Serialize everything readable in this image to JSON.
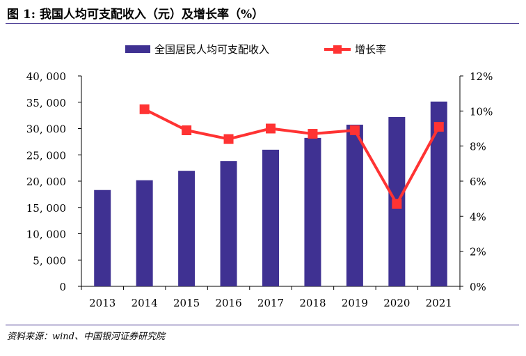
{
  "header": {
    "title": "图 1: 我国人均可支配收入（元）及增长率（%）"
  },
  "footer": {
    "source": "资料来源：wind、中国银河证券研究院"
  },
  "colors": {
    "bar": "#3f3192",
    "line": "#ff3333",
    "rule": "#3a2a8a"
  },
  "chart_data": {
    "type": "bar",
    "categories": [
      "2013",
      "2014",
      "2015",
      "2016",
      "2017",
      "2018",
      "2019",
      "2020",
      "2021"
    ],
    "series": [
      {
        "name": "全国居民人均可支配收入",
        "kind": "bar",
        "axis": "left",
        "values": [
          18311,
          20167,
          21966,
          23821,
          25974,
          28228,
          30733,
          32189,
          35128
        ]
      },
      {
        "name": "增长率",
        "kind": "line",
        "axis": "right",
        "values": [
          null,
          10.1,
          8.9,
          8.4,
          9.0,
          8.7,
          8.9,
          4.7,
          9.1
        ]
      }
    ],
    "y_left": {
      "ylim": [
        0,
        40000
      ],
      "ticks": [
        0,
        5000,
        10000,
        15000,
        20000,
        25000,
        30000,
        35000,
        40000
      ],
      "tick_labels": [
        "0",
        "5, 000",
        "10, 000",
        "15, 000",
        "20, 000",
        "25, 000",
        "30, 000",
        "35, 000",
        "40, 000"
      ]
    },
    "y_right": {
      "ylim": [
        0,
        12
      ],
      "ticks": [
        0,
        2,
        4,
        6,
        8,
        10,
        12
      ],
      "tick_labels": [
        "0%",
        "2%",
        "4%",
        "6%",
        "8%",
        "10%",
        "12%"
      ]
    },
    "legend": {
      "position": "top-center",
      "entries": [
        "全国居民人均可支配收入",
        "增长率"
      ]
    },
    "grid": false
  }
}
